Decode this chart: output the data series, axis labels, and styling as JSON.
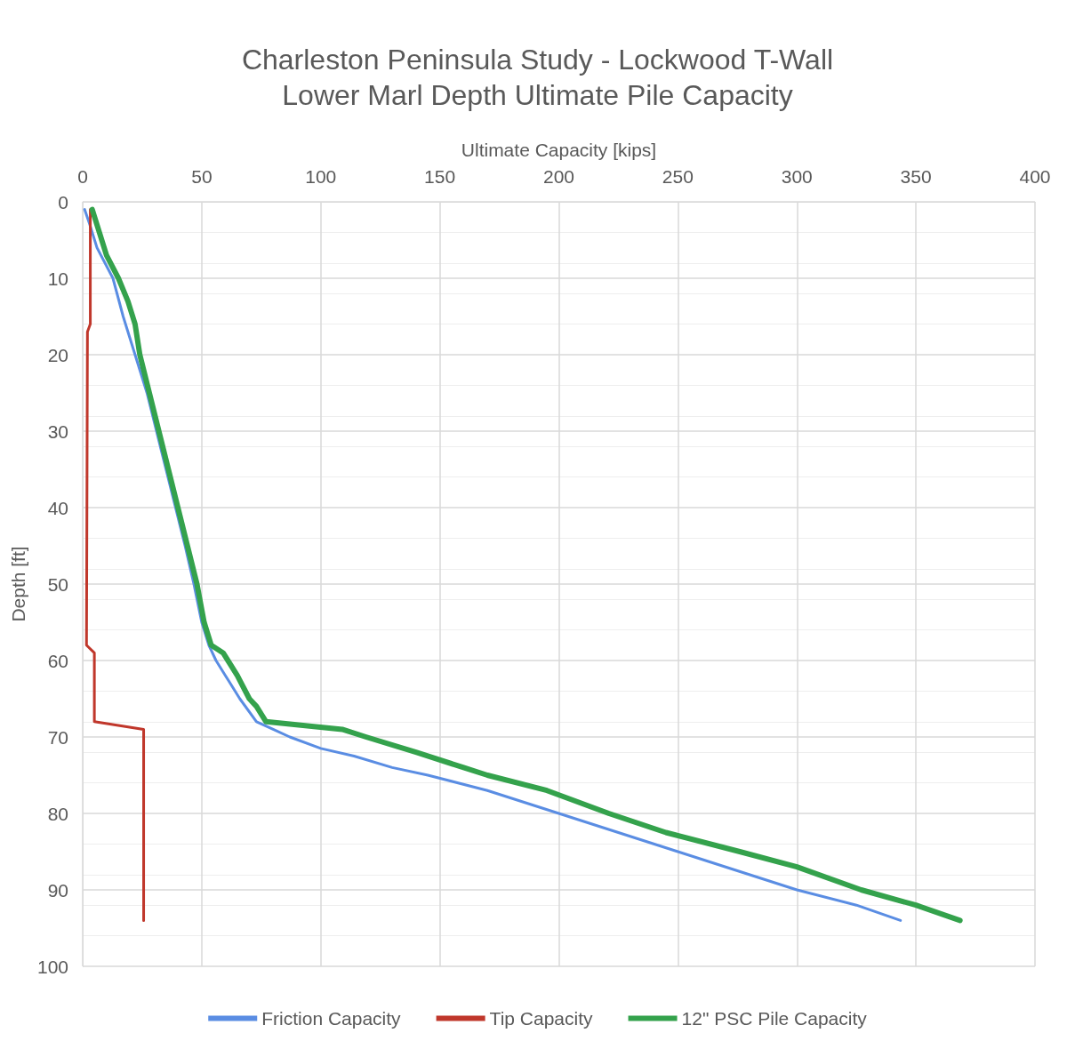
{
  "chart_data": {
    "type": "line",
    "title": "Charleston Peninsula Study - Lockwood T-Wall\nLower Marl Depth Ultimate Pile Capacity",
    "xlabel": "Ultimate Capacity [kips]",
    "ylabel": "Depth [ft]",
    "xlim": [
      0,
      400
    ],
    "xticks": [
      0,
      50,
      100,
      150,
      200,
      250,
      300,
      350,
      400
    ],
    "ylim": [
      100,
      0
    ],
    "yticks": [
      0,
      10,
      20,
      30,
      40,
      50,
      60,
      70,
      80,
      90,
      100
    ],
    "grid": true,
    "legend": "bottom",
    "marker": "none",
    "line_style": "solid",
    "series": [
      {
        "name": "Friction Capacity",
        "color": "#5a8de3",
        "x": [
          0.8,
          3,
          6,
          12.7,
          17,
          22,
          27,
          31,
          35,
          39,
          43,
          46.7,
          50,
          53,
          56,
          62,
          66,
          73,
          80,
          87,
          100,
          114,
          130,
          145,
          170,
          200,
          225,
          250,
          275,
          300,
          325,
          343.5
        ],
        "values": [
          1,
          3,
          6,
          10,
          15,
          20,
          25,
          30,
          35,
          40,
          45,
          50,
          55,
          58,
          60,
          63,
          65,
          68,
          69,
          70,
          71.5,
          72.5,
          74,
          75,
          77,
          80,
          82.5,
          85,
          87.5,
          90,
          92,
          94
        ]
      },
      {
        "name": "Tip Capacity",
        "color": "#c0372b",
        "x": [
          3.2,
          3.2,
          2,
          1.6,
          4.9,
          4.9,
          25.6,
          25.6
        ],
        "values": [
          1,
          16,
          17,
          58,
          59,
          68,
          69,
          94
        ]
      },
      {
        "name": "12\" PSC Pile Capacity",
        "color": "#34a24c",
        "x": [
          4,
          7,
          10,
          15,
          19,
          22,
          24,
          28,
          32,
          36,
          40,
          44,
          48,
          51,
          54,
          59,
          65,
          70,
          73,
          77,
          109,
          119,
          140,
          160,
          170,
          195,
          221,
          245,
          276,
          300,
          327,
          350,
          368.5
        ],
        "values": [
          1,
          4,
          7,
          10,
          13,
          16,
          20,
          25,
          30,
          35,
          40,
          45,
          50,
          55,
          58,
          59,
          62,
          65,
          66,
          68,
          69,
          70,
          72,
          74,
          75,
          77,
          80,
          82.5,
          85,
          87,
          90,
          92,
          94
        ]
      }
    ]
  }
}
